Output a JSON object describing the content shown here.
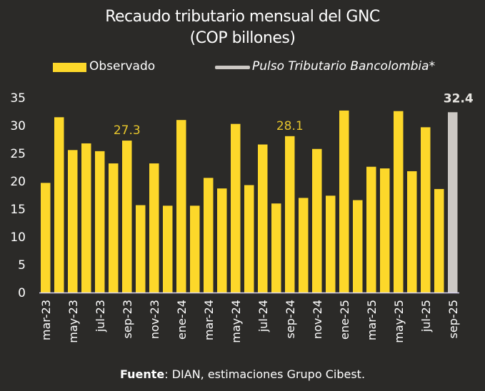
{
  "chart_data": {
    "type": "bar",
    "title": "Recaudo tributario mensual del GNC",
    "subtitle": "(COP billones)",
    "xlabel": "",
    "ylabel": "",
    "ylim": [
      0,
      35
    ],
    "yticks": [
      0,
      5,
      10,
      15,
      20,
      25,
      30,
      35
    ],
    "grid": false,
    "legend_position": "top",
    "legend": [
      {
        "name": "Observado",
        "color": "#fdd82a",
        "marker": "box"
      },
      {
        "name": "Pulso Tributario Bancolombia*",
        "color": "#ccc8c4",
        "marker": "line",
        "italic": true
      }
    ],
    "categories": [
      "mar-23",
      "abr-23",
      "may-23",
      "jun-23",
      "jul-23",
      "ago-23",
      "sep-23",
      "oct-23",
      "nov-23",
      "dic-23",
      "ene-24",
      "feb-24",
      "mar-24",
      "abr-24",
      "may-24",
      "jun-24",
      "jul-24",
      "ago-24",
      "sep-24",
      "oct-24",
      "nov-24",
      "dic-24",
      "ene-25",
      "feb-25",
      "mar-25",
      "abr-25",
      "may-25",
      "jun-25",
      "jul-25",
      "ago-25",
      "sep-25"
    ],
    "tick_labels": [
      "mar-23",
      "may-23",
      "jul-23",
      "sep-23",
      "nov-23",
      "ene-24",
      "mar-24",
      "may-24",
      "jul-24",
      "sep-24",
      "nov-24",
      "ene-25",
      "mar-25",
      "may-25",
      "jul-25",
      "sep-25"
    ],
    "series": [
      {
        "name": "Observado",
        "color": "#fdd82a",
        "values": [
          19.7,
          31.5,
          25.6,
          26.8,
          25.4,
          23.2,
          27.3,
          15.7,
          23.2,
          15.6,
          31.0,
          15.6,
          20.6,
          18.7,
          30.3,
          19.3,
          26.6,
          16.0,
          28.1,
          17.0,
          25.8,
          17.4,
          32.7,
          16.6,
          22.6,
          22.3,
          32.6,
          21.8,
          29.7,
          18.6,
          null
        ]
      },
      {
        "name": "Pulso Tributario Bancolombia*",
        "color": "#ccc8c4",
        "values": [
          null,
          null,
          null,
          null,
          null,
          null,
          null,
          null,
          null,
          null,
          null,
          null,
          null,
          null,
          null,
          null,
          null,
          null,
          null,
          null,
          null,
          null,
          null,
          null,
          null,
          null,
          null,
          null,
          null,
          null,
          32.4
        ]
      }
    ],
    "annotations": [
      {
        "category": "sep-23",
        "text": "27.3",
        "color": "#e6c52c"
      },
      {
        "category": "sep-24",
        "text": "28.1",
        "color": "#e6c52c"
      },
      {
        "category": "sep-25",
        "text": "32.4",
        "color": "#e8e6e2",
        "bold": true
      }
    ]
  },
  "footer": {
    "label": "Fuente",
    "text": ": DIAN, estimaciones Grupo Cibest."
  },
  "colors": {
    "background": "#2b2a28",
    "axis": "#d8d4ee",
    "text": "#ffffff"
  }
}
